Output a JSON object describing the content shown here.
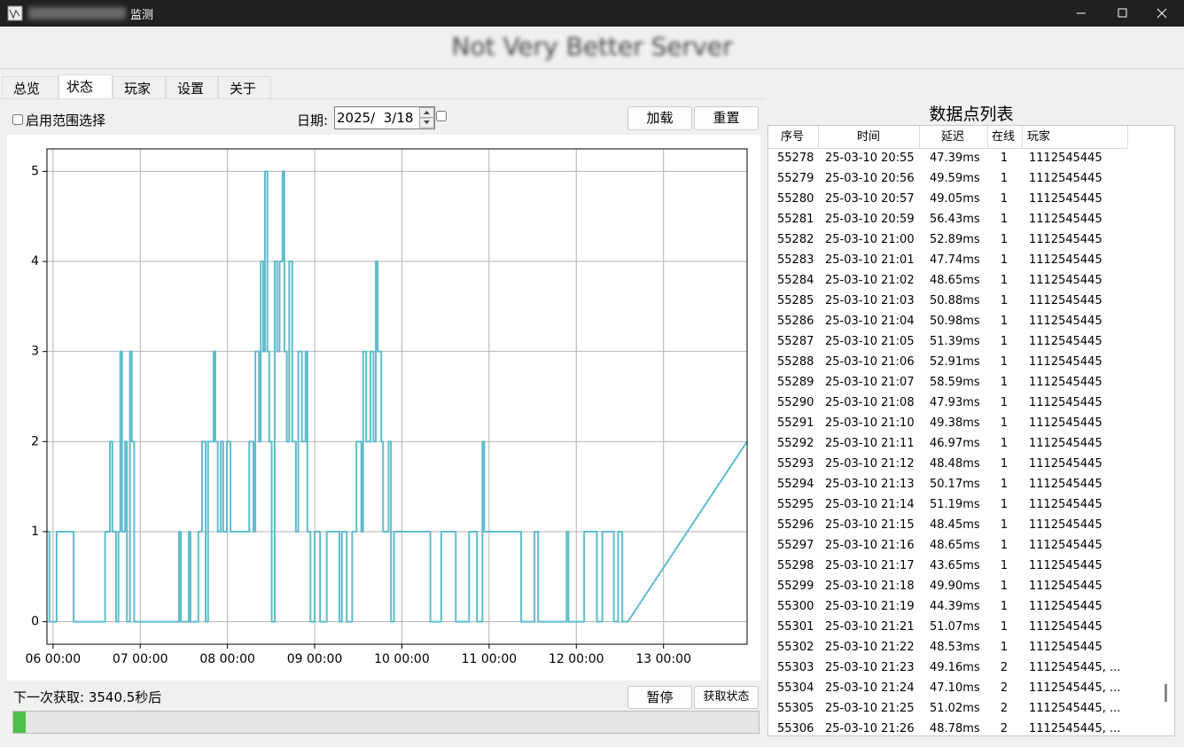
{
  "window": {
    "title": "监测",
    "header": "Not Very Better Server"
  },
  "tabs": [
    "总览",
    "状态",
    "玩家",
    "设置",
    "关于"
  ],
  "controls": {
    "range_checkbox": "启用范围选择",
    "date_label": "日期:",
    "date_value": "2025/  3/18",
    "load": "加载",
    "reset": "重置"
  },
  "chart_data": {
    "type": "line",
    "color": "#5fbccc",
    "grid": true,
    "xlim": [
      "05 22:20",
      "13 23:00"
    ],
    "xticks": [
      "06 00:00",
      "07 00:00",
      "08 00:00",
      "09 00:00",
      "10 00:00",
      "11 00:00",
      "12 00:00",
      "13 00:00"
    ],
    "ylim": [
      -0.25,
      5.25
    ],
    "yticks": [
      0,
      1,
      2,
      3,
      4,
      5
    ],
    "x": [
      "05 22:20",
      "05 23:00",
      "05 23:00",
      "06 01:00",
      "06 01:00",
      "06 05:40",
      "06 05:40",
      "06 14:20",
      "06 14:20",
      "06 15:40",
      "06 15:40",
      "06 16:20",
      "06 16:20",
      "06 17:20",
      "06 17:20",
      "06 18:00",
      "06 18:00",
      "06 18:30",
      "06 18:30",
      "06 19:00",
      "06 19:00",
      "06 19:50",
      "06 19:50",
      "06 20:20",
      "06 20:20",
      "06 21:10",
      "06 21:10",
      "06 21:40",
      "06 21:40",
      "06 22:20",
      "06 22:20",
      "07 10:40",
      "07 10:40",
      "07 11:10",
      "07 11:10",
      "07 13:20",
      "07 13:20",
      "07 13:50",
      "07 13:50",
      "07 16:00",
      "07 16:00",
      "07 17:00",
      "07 17:00",
      "07 18:00",
      "07 18:00",
      "07 18:40",
      "07 18:40",
      "07 20:10",
      "07 20:10",
      "07 20:40",
      "07 20:40",
      "07 21:20",
      "07 21:20",
      "07 22:10",
      "07 22:10",
      "07 22:50",
      "07 22:50",
      "07 23:50",
      "07 23:50",
      "08 00:50",
      "08 00:50",
      "08 06:00",
      "08 06:00",
      "08 07:10",
      "08 07:10",
      "08 07:40",
      "08 07:40",
      "08 08:40",
      "08 08:40",
      "08 09:10",
      "08 09:10",
      "08 09:50",
      "08 09:50",
      "08 10:20",
      "08 10:20",
      "08 11:00",
      "08 11:00",
      "08 11:30",
      "08 11:30",
      "08 12:10",
      "08 12:10",
      "08 13:00",
      "08 13:00",
      "08 13:40",
      "08 13:40",
      "08 14:20",
      "08 14:20",
      "08 15:10",
      "08 15:10",
      "08 15:40",
      "08 15:40",
      "08 16:20",
      "08 16:20",
      "08 17:00",
      "08 17:00",
      "08 17:50",
      "08 17:50",
      "08 18:50",
      "08 18:50",
      "08 19:30",
      "08 19:30",
      "08 20:30",
      "08 20:30",
      "08 21:30",
      "08 21:30",
      "08 22:00",
      "08 22:00",
      "08 22:50",
      "08 22:50",
      "09 00:00",
      "09 00:00",
      "09 01:30",
      "09 01:30",
      "09 03:20",
      "09 03:20",
      "09 06:50",
      "09 06:50",
      "09 07:30",
      "09 07:30",
      "09 08:50",
      "09 08:50",
      "09 10:20",
      "09 10:20",
      "09 11:30",
      "09 11:30",
      "09 12:50",
      "09 12:50",
      "09 13:20",
      "09 13:20",
      "09 14:10",
      "09 14:10",
      "09 15:20",
      "09 15:20",
      "09 16:10",
      "09 16:10",
      "09 16:50",
      "09 16:50",
      "09 17:20",
      "09 17:20",
      "09 18:20",
      "09 18:20",
      "09 18:50",
      "09 18:50",
      "09 20:20",
      "09 20:20",
      "09 21:00",
      "09 21:00",
      "09 21:50",
      "09 21:50",
      "10 07:50",
      "10 07:50",
      "10 10:50",
      "10 10:50",
      "10 14:50",
      "10 14:50",
      "10 18:30",
      "10 18:30",
      "10 20:40",
      "10 20:40",
      "10 22:10",
      "10 22:10",
      "10 22:40",
      "10 22:40",
      "11 08:50",
      "11 08:50",
      "11 12:30",
      "11 12:30",
      "11 13:30",
      "11 13:30",
      "11 21:20",
      "11 21:20",
      "11 21:50",
      "11 21:50",
      "12 02:10",
      "12 02:10",
      "12 05:40",
      "12 05:40",
      "12 07:10",
      "12 07:10",
      "12 10:20",
      "12 10:20",
      "12 11:30",
      "12 11:30",
      "12 12:40",
      "12 12:40",
      "12 14:10",
      "13 23:00"
    ],
    "values": [
      1,
      1,
      0,
      0,
      1,
      1,
      0,
      0,
      1,
      1,
      2,
      2,
      1,
      1,
      0,
      0,
      1,
      1,
      3,
      3,
      1,
      1,
      2,
      2,
      0,
      0,
      3,
      3,
      2,
      2,
      0,
      0,
      1,
      1,
      0,
      0,
      1,
      1,
      0,
      0,
      1,
      1,
      2,
      2,
      0,
      0,
      2,
      2,
      3,
      3,
      2,
      2,
      1,
      1,
      2,
      2,
      1,
      1,
      2,
      2,
      1,
      1,
      2,
      2,
      1,
      1,
      3,
      3,
      2,
      2,
      4,
      4,
      3,
      3,
      5,
      5,
      3,
      3,
      2,
      2,
      0,
      0,
      4,
      4,
      3,
      3,
      4,
      4,
      5,
      5,
      3,
      3,
      2,
      2,
      4,
      4,
      2,
      2,
      1,
      1,
      3,
      3,
      2,
      2,
      3,
      3,
      1,
      1,
      0,
      0,
      1,
      1,
      0,
      0,
      1,
      1,
      0,
      0,
      1,
      1,
      0,
      0,
      1,
      1,
      2,
      2,
      1,
      1,
      3,
      3,
      2,
      2,
      3,
      3,
      2,
      2,
      4,
      4,
      3,
      3,
      2,
      2,
      1,
      1,
      2,
      2,
      0,
      0,
      1,
      1,
      0,
      0,
      1,
      1,
      0,
      0,
      1,
      1,
      0,
      0,
      2,
      2,
      1,
      1,
      0,
      0,
      1,
      1,
      0,
      0,
      1,
      1,
      0,
      0,
      1,
      1,
      0,
      0,
      1,
      1,
      0,
      0,
      1,
      1,
      0,
      0,
      2
    ]
  },
  "table": {
    "title": "数据点列表",
    "columns": [
      "序号",
      "时间",
      "延迟",
      "在线",
      "玩家"
    ],
    "rows": [
      [
        "55278",
        "25-03-10 20:55",
        "47.39ms",
        "1",
        "1112545445"
      ],
      [
        "55279",
        "25-03-10 20:56",
        "49.59ms",
        "1",
        "1112545445"
      ],
      [
        "55280",
        "25-03-10 20:57",
        "49.05ms",
        "1",
        "1112545445"
      ],
      [
        "55281",
        "25-03-10 20:59",
        "56.43ms",
        "1",
        "1112545445"
      ],
      [
        "55282",
        "25-03-10 21:00",
        "52.89ms",
        "1",
        "1112545445"
      ],
      [
        "55283",
        "25-03-10 21:01",
        "47.74ms",
        "1",
        "1112545445"
      ],
      [
        "55284",
        "25-03-10 21:02",
        "48.65ms",
        "1",
        "1112545445"
      ],
      [
        "55285",
        "25-03-10 21:03",
        "50.88ms",
        "1",
        "1112545445"
      ],
      [
        "55286",
        "25-03-10 21:04",
        "50.98ms",
        "1",
        "1112545445"
      ],
      [
        "55287",
        "25-03-10 21:05",
        "51.39ms",
        "1",
        "1112545445"
      ],
      [
        "55288",
        "25-03-10 21:06",
        "52.91ms",
        "1",
        "1112545445"
      ],
      [
        "55289",
        "25-03-10 21:07",
        "58.59ms",
        "1",
        "1112545445"
      ],
      [
        "55290",
        "25-03-10 21:08",
        "47.93ms",
        "1",
        "1112545445"
      ],
      [
        "55291",
        "25-03-10 21:10",
        "49.38ms",
        "1",
        "1112545445"
      ],
      [
        "55292",
        "25-03-10 21:11",
        "46.97ms",
        "1",
        "1112545445"
      ],
      [
        "55293",
        "25-03-10 21:12",
        "48.48ms",
        "1",
        "1112545445"
      ],
      [
        "55294",
        "25-03-10 21:13",
        "50.17ms",
        "1",
        "1112545445"
      ],
      [
        "55295",
        "25-03-10 21:14",
        "51.19ms",
        "1",
        "1112545445"
      ],
      [
        "55296",
        "25-03-10 21:15",
        "48.45ms",
        "1",
        "1112545445"
      ],
      [
        "55297",
        "25-03-10 21:16",
        "48.65ms",
        "1",
        "1112545445"
      ],
      [
        "55298",
        "25-03-10 21:17",
        "43.65ms",
        "1",
        "1112545445"
      ],
      [
        "55299",
        "25-03-10 21:18",
        "49.90ms",
        "1",
        "1112545445"
      ],
      [
        "55300",
        "25-03-10 21:19",
        "44.39ms",
        "1",
        "1112545445"
      ],
      [
        "55301",
        "25-03-10 21:21",
        "51.07ms",
        "1",
        "1112545445"
      ],
      [
        "55302",
        "25-03-10 21:22",
        "48.53ms",
        "1",
        "1112545445"
      ],
      [
        "55303",
        "25-03-10 21:23",
        "49.16ms",
        "2",
        "1112545445, ..."
      ],
      [
        "55304",
        "25-03-10 21:24",
        "47.10ms",
        "2",
        "1112545445, ..."
      ],
      [
        "55305",
        "25-03-10 21:25",
        "51.02ms",
        "2",
        "1112545445, ..."
      ],
      [
        "55306",
        "25-03-10 21:26",
        "48.78ms",
        "2",
        "1112545445, ..."
      ]
    ]
  },
  "status": {
    "next_fetch": "下一次获取: 3540.5秒后",
    "pause": "暂停",
    "fetch": "获取状态"
  }
}
